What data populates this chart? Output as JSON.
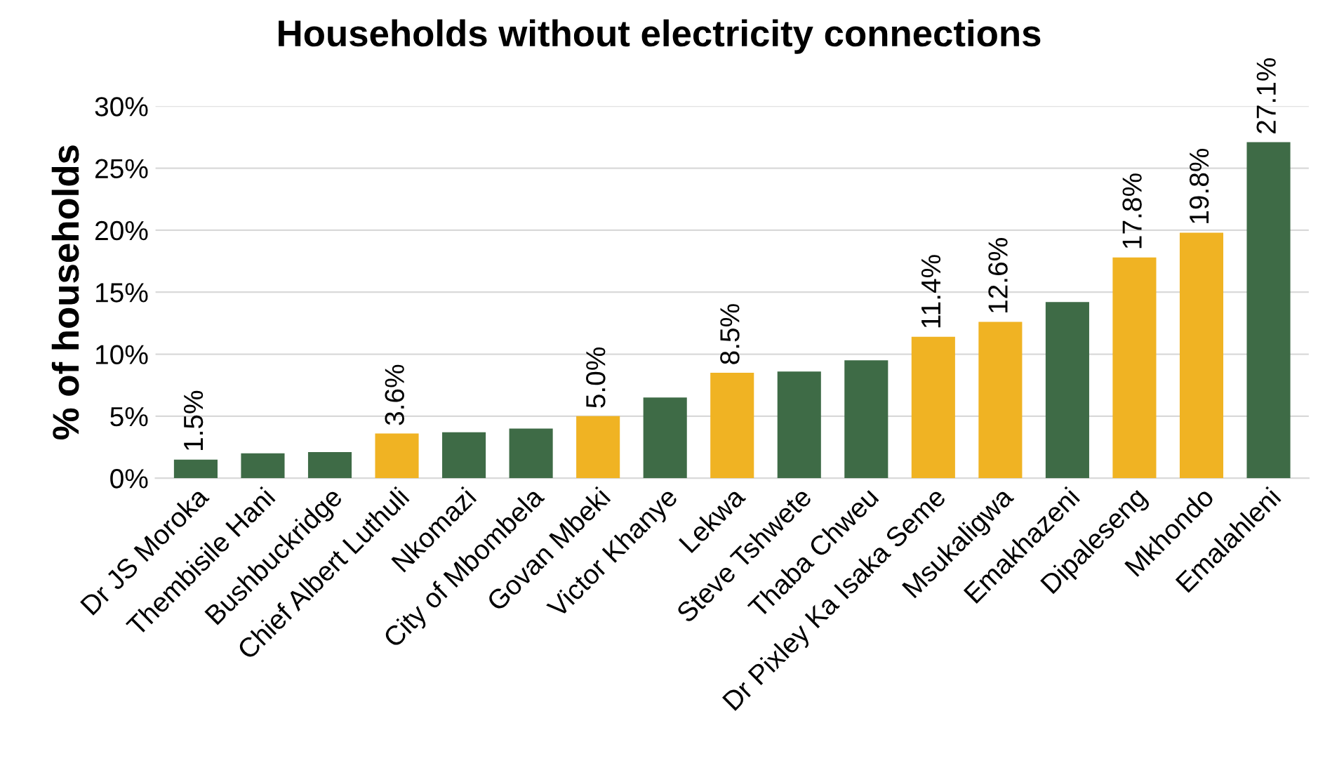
{
  "chart_data": {
    "type": "bar",
    "title": "Households without electricity connections",
    "ylabel": "% of households",
    "categories": [
      "Dr JS Moroka",
      "Thembisile Hani",
      "Bushbuckridge",
      "Chief Albert Luthuli",
      "Nkomazi",
      "City of Mbombela",
      "Govan Mbeki",
      "Victor Khanye",
      "Lekwa",
      "Steve Tshwete",
      "Thaba Chweu",
      "Dr Pixley Ka Isaka Seme",
      "Msukaligwa",
      "Emakhazeni",
      "Dipaleseng",
      "Mkhondo",
      "Emalahleni"
    ],
    "values": [
      1.5,
      2.0,
      2.1,
      3.6,
      3.7,
      4.0,
      5.0,
      6.5,
      8.5,
      8.6,
      9.5,
      11.4,
      12.6,
      14.2,
      17.8,
      19.8,
      27.1
    ],
    "colors": [
      "#3e6b46",
      "#3e6b46",
      "#3e6b46",
      "#f0b323",
      "#3e6b46",
      "#3e6b46",
      "#f0b323",
      "#3e6b46",
      "#f0b323",
      "#3e6b46",
      "#3e6b46",
      "#f0b323",
      "#f0b323",
      "#3e6b46",
      "#f0b323",
      "#f0b323",
      "#3e6b46"
    ],
    "value_labels": [
      "1.5%",
      null,
      null,
      "3.6%",
      null,
      null,
      "5.0%",
      null,
      "8.5%",
      null,
      null,
      "11.4%",
      "12.6%",
      null,
      "17.8%",
      "19.8%",
      "27.1%"
    ],
    "ylim": [
      0,
      30
    ],
    "yticks": [
      {
        "value": 0,
        "label": "0%"
      },
      {
        "value": 5,
        "label": "5%"
      },
      {
        "value": 10,
        "label": "10%"
      },
      {
        "value": 15,
        "label": "15%"
      },
      {
        "value": 20,
        "label": "20%"
      },
      {
        "value": 25,
        "label": "25%"
      },
      {
        "value": 30,
        "label": "30%"
      }
    ],
    "grid": "y",
    "legend": false
  }
}
